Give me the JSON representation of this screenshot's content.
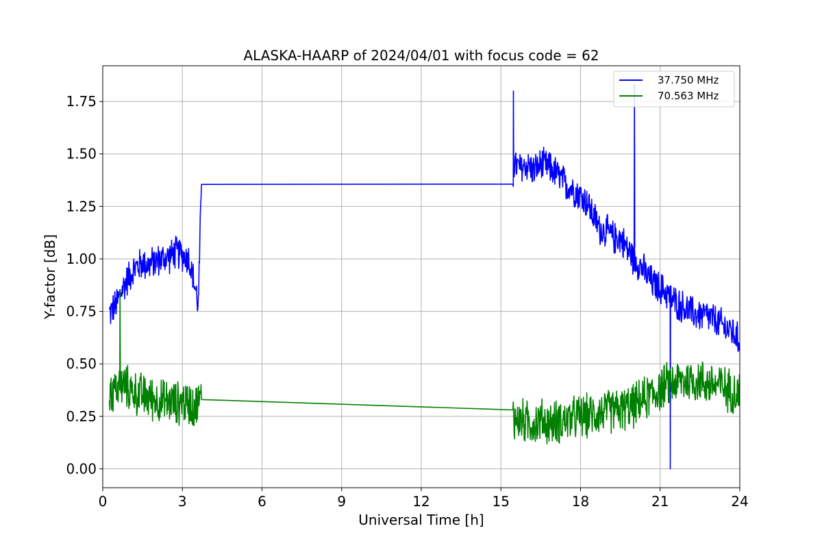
{
  "chart_data": {
    "type": "line",
    "title": "ALASKA-HAARP of 2024/04/01 with focus code = 62",
    "xlabel": "Universal Time [h]",
    "ylabel": "Y-factor [dB]",
    "xlim": [
      0,
      24
    ],
    "ylim": [
      -0.09,
      1.92
    ],
    "xticks": [
      0,
      3,
      6,
      9,
      12,
      15,
      18,
      21,
      24
    ],
    "xtick_labels": [
      "0",
      "3",
      "6",
      "9",
      "12",
      "15",
      "18",
      "21",
      "24"
    ],
    "yticks": [
      0.0,
      0.25,
      0.5,
      0.75,
      1.0,
      1.25,
      1.5,
      1.75
    ],
    "ytick_labels": [
      "0.00",
      "0.25",
      "0.50",
      "0.75",
      "1.00",
      "1.25",
      "1.50",
      "1.75"
    ],
    "grid": true,
    "legend_position": "top-right",
    "series": [
      {
        "name": "37.750 MHz",
        "color": "#0000ff",
        "x": [
          0.25,
          0.5,
          0.75,
          1.0,
          1.25,
          1.5,
          1.75,
          2.0,
          2.25,
          2.5,
          2.75,
          3.0,
          3.25,
          3.5,
          3.6,
          3.72,
          15.45,
          15.5,
          15.75,
          16.0,
          16.25,
          16.5,
          16.75,
          17.0,
          17.25,
          17.5,
          17.75,
          18.0,
          18.25,
          18.5,
          18.75,
          19.0,
          19.25,
          19.5,
          19.75,
          20.0,
          20.25,
          20.5,
          20.75,
          21.0,
          21.25,
          21.5,
          21.75,
          22.0,
          22.25,
          22.5,
          22.75,
          23.0,
          23.25,
          23.5,
          23.75,
          24.0
        ],
        "values": [
          0.74,
          0.78,
          0.86,
          0.92,
          0.96,
          0.98,
          0.97,
          0.99,
          1.0,
          1.01,
          1.03,
          1.02,
          1.0,
          0.85,
          0.78,
          1.355,
          1.385,
          1.45,
          1.43,
          1.45,
          1.42,
          1.45,
          1.44,
          1.42,
          1.38,
          1.35,
          1.33,
          1.3,
          1.27,
          1.2,
          1.14,
          1.13,
          1.1,
          1.1,
          1.05,
          1.0,
          0.97,
          0.92,
          0.88,
          0.86,
          0.84,
          0.8,
          0.78,
          0.76,
          0.74,
          0.73,
          0.73,
          0.71,
          0.69,
          0.67,
          0.65,
          0.6
        ],
        "noise_amplitude": 0.09,
        "spikes": [
          {
            "x": 15.47,
            "y": 1.8
          },
          {
            "x": 20.03,
            "y": 1.83
          },
          {
            "x": 21.38,
            "y": 0.0
          }
        ]
      },
      {
        "name": "70.563 MHz",
        "color": "#008000",
        "x": [
          0.25,
          0.5,
          0.75,
          1.0,
          1.25,
          1.5,
          1.75,
          2.0,
          2.25,
          2.5,
          2.75,
          3.0,
          3.25,
          3.5,
          3.72,
          15.45,
          15.5,
          15.75,
          16.0,
          16.25,
          16.5,
          16.75,
          17.0,
          17.25,
          17.5,
          17.75,
          18.0,
          18.25,
          18.5,
          18.75,
          19.0,
          19.25,
          19.5,
          19.75,
          20.0,
          20.25,
          20.5,
          20.75,
          21.0,
          21.25,
          21.5,
          21.75,
          22.0,
          22.25,
          22.5,
          22.75,
          23.0,
          23.25,
          23.5,
          23.75,
          24.0
        ],
        "values": [
          0.36,
          0.38,
          0.4,
          0.38,
          0.36,
          0.35,
          0.34,
          0.33,
          0.32,
          0.32,
          0.31,
          0.32,
          0.31,
          0.3,
          0.33,
          0.34,
          0.24,
          0.23,
          0.22,
          0.22,
          0.23,
          0.22,
          0.22,
          0.23,
          0.23,
          0.24,
          0.25,
          0.25,
          0.26,
          0.27,
          0.27,
          0.28,
          0.28,
          0.29,
          0.3,
          0.32,
          0.34,
          0.36,
          0.38,
          0.4,
          0.41,
          0.42,
          0.42,
          0.42,
          0.42,
          0.41,
          0.4,
          0.4,
          0.38,
          0.37,
          0.36
        ],
        "noise_amplitude": 0.12,
        "spikes": [
          {
            "x": 0.65,
            "y": 0.85
          }
        ]
      }
    ]
  }
}
